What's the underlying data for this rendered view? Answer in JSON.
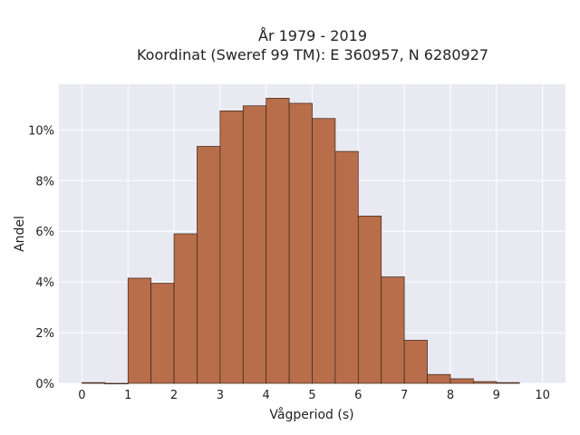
{
  "chart_data": {
    "type": "bar",
    "title": "År 1979 - 2019",
    "subtitle": "Koordinat (Sweref 99 TM): E 360957, N 6280927",
    "xlabel": "Vågperiod (s)",
    "ylabel": "Andel",
    "xlim": [
      -0.5,
      10.5
    ],
    "ylim": [
      0,
      11.8
    ],
    "x_ticks": [
      0,
      1,
      2,
      3,
      4,
      5,
      6,
      7,
      8,
      9,
      10
    ],
    "y_ticks": [
      0,
      2,
      4,
      6,
      8,
      10
    ],
    "y_tick_suffix": "%",
    "bin_width": 0.5,
    "bins": [
      {
        "start": 0.0,
        "value": 0.03
      },
      {
        "start": 0.5,
        "value": 0.0
      },
      {
        "start": 1.0,
        "value": 4.15
      },
      {
        "start": 1.5,
        "value": 3.95
      },
      {
        "start": 2.0,
        "value": 5.9
      },
      {
        "start": 2.5,
        "value": 9.35
      },
      {
        "start": 3.0,
        "value": 10.75
      },
      {
        "start": 3.5,
        "value": 10.95
      },
      {
        "start": 4.0,
        "value": 11.25
      },
      {
        "start": 4.5,
        "value": 11.05
      },
      {
        "start": 5.0,
        "value": 10.45
      },
      {
        "start": 5.5,
        "value": 9.15
      },
      {
        "start": 6.0,
        "value": 6.6
      },
      {
        "start": 6.5,
        "value": 4.2
      },
      {
        "start": 7.0,
        "value": 1.7
      },
      {
        "start": 7.5,
        "value": 0.35
      },
      {
        "start": 8.0,
        "value": 0.18
      },
      {
        "start": 8.5,
        "value": 0.07
      },
      {
        "start": 9.0,
        "value": 0.03
      }
    ],
    "grid": true,
    "colors": {
      "bar": "#b86e4b",
      "bar_edge": "#3a2418",
      "plot_bg": "#e9e9f1",
      "grid": "#ffffff"
    }
  }
}
